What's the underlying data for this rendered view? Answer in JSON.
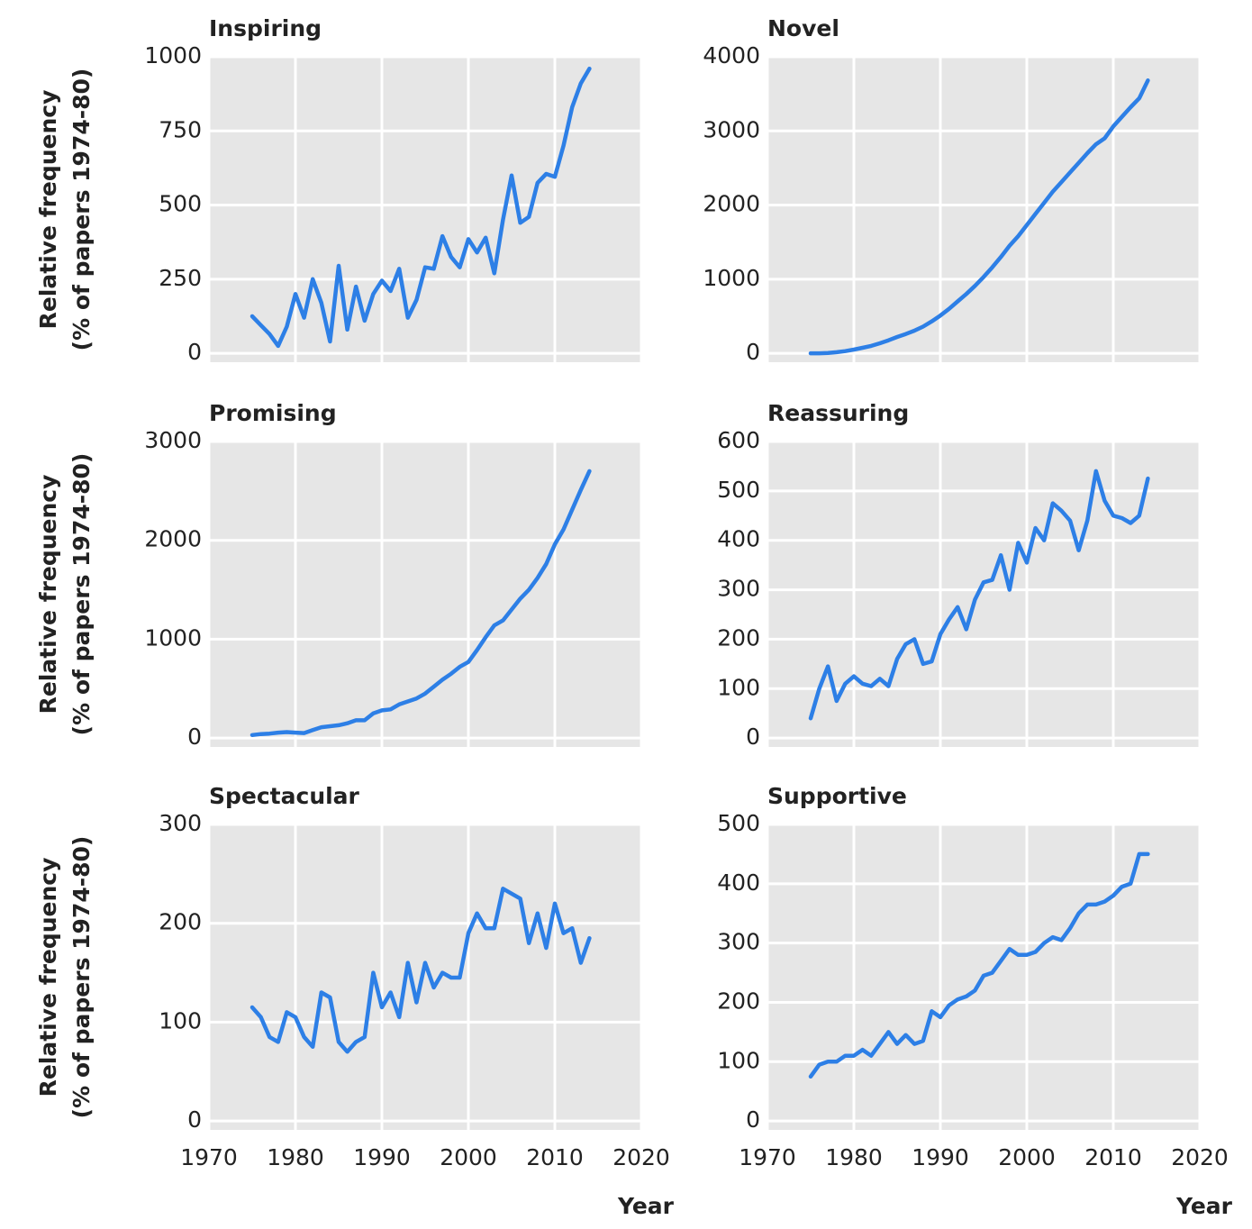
{
  "chart_data": [
    {
      "type": "line",
      "title": "Inspiring",
      "ylabel": [
        "Relative frequency",
        "(% of papers 1974-80)"
      ],
      "x": [
        1975,
        1976,
        1977,
        1978,
        1979,
        1980,
        1981,
        1982,
        1983,
        1984,
        1985,
        1986,
        1987,
        1988,
        1989,
        1990,
        1991,
        1992,
        1993,
        1994,
        1995,
        1996,
        1997,
        1998,
        1999,
        2000,
        2001,
        2002,
        2003,
        2004,
        2005,
        2006,
        2007,
        2008,
        2009,
        2010,
        2011,
        2012,
        2013,
        2014
      ],
      "series": [
        {
          "color": "#2d7fe6",
          "values": [
            125,
            95,
            65,
            25,
            90,
            200,
            120,
            250,
            170,
            40,
            295,
            80,
            225,
            110,
            200,
            245,
            210,
            285,
            120,
            180,
            290,
            285,
            395,
            325,
            290,
            385,
            340,
            390,
            270,
            450,
            600,
            440,
            460,
            575,
            605,
            595,
            700,
            830,
            910,
            960
          ]
        }
      ],
      "xlim": [
        1970,
        2020
      ],
      "xticks": [
        1970,
        1980,
        1990,
        2000,
        2010,
        2020
      ],
      "ylim": [
        -30,
        1000
      ],
      "yticks": [
        0,
        250,
        500,
        750,
        1000
      ],
      "grid": true
    },
    {
      "type": "line",
      "title": "Novel",
      "x": [
        1975,
        1976,
        1977,
        1978,
        1979,
        1980,
        1981,
        1982,
        1983,
        1984,
        1985,
        1986,
        1987,
        1988,
        1989,
        1990,
        1991,
        1992,
        1993,
        1994,
        1995,
        1996,
        1997,
        1998,
        1999,
        2000,
        2001,
        2002,
        2003,
        2004,
        2005,
        2006,
        2007,
        2008,
        2009,
        2010,
        2011,
        2012,
        2013,
        2014
      ],
      "series": [
        {
          "color": "#2d7fe6",
          "values": [
            0,
            0,
            5,
            15,
            30,
            50,
            75,
            100,
            135,
            175,
            220,
            260,
            305,
            360,
            430,
            510,
            600,
            700,
            800,
            910,
            1030,
            1160,
            1300,
            1450,
            1580,
            1730,
            1880,
            2030,
            2180,
            2310,
            2440,
            2570,
            2700,
            2820,
            2900,
            3060,
            3190,
            3320,
            3440,
            3680
          ]
        }
      ],
      "xlim": [
        1970,
        2020
      ],
      "xticks": [
        1970,
        1980,
        1990,
        2000,
        2010,
        2020
      ],
      "ylim": [
        -120,
        4000
      ],
      "yticks": [
        0,
        1000,
        2000,
        3000,
        4000
      ],
      "grid": true
    },
    {
      "type": "line",
      "title": "Promising",
      "ylabel": [
        "Relative frequency",
        "(% of papers 1974-80)"
      ],
      "x": [
        1975,
        1976,
        1977,
        1978,
        1979,
        1980,
        1981,
        1982,
        1983,
        1984,
        1985,
        1986,
        1987,
        1988,
        1989,
        1990,
        1991,
        1992,
        1993,
        1994,
        1995,
        1996,
        1997,
        1998,
        1999,
        2000,
        2001,
        2002,
        2003,
        2004,
        2005,
        2006,
        2007,
        2008,
        2009,
        2010,
        2011,
        2012,
        2013,
        2014
      ],
      "series": [
        {
          "color": "#2d7fe6",
          "values": [
            30,
            40,
            45,
            55,
            60,
            55,
            50,
            80,
            110,
            120,
            130,
            150,
            180,
            180,
            250,
            280,
            290,
            340,
            370,
            400,
            450,
            520,
            590,
            650,
            720,
            770,
            890,
            1020,
            1140,
            1190,
            1300,
            1410,
            1500,
            1620,
            1760,
            1960,
            2110,
            2310,
            2510,
            2700
          ]
        }
      ],
      "xlim": [
        1970,
        2020
      ],
      "xticks": [
        1970,
        1980,
        1990,
        2000,
        2010,
        2020
      ],
      "ylim": [
        -90,
        3000
      ],
      "yticks": [
        0,
        1000,
        2000,
        3000
      ],
      "grid": true
    },
    {
      "type": "line",
      "title": "Reassuring",
      "x": [
        1975,
        1976,
        1977,
        1978,
        1979,
        1980,
        1981,
        1982,
        1983,
        1984,
        1985,
        1986,
        1987,
        1988,
        1989,
        1990,
        1991,
        1992,
        1993,
        1994,
        1995,
        1996,
        1997,
        1998,
        1999,
        2000,
        2001,
        2002,
        2003,
        2004,
        2005,
        2006,
        2007,
        2008,
        2009,
        2010,
        2011,
        2012,
        2013,
        2014
      ],
      "series": [
        {
          "color": "#2d7fe6",
          "values": [
            40,
            100,
            145,
            75,
            110,
            125,
            110,
            105,
            120,
            105,
            160,
            190,
            200,
            150,
            155,
            210,
            240,
            265,
            220,
            280,
            315,
            320,
            370,
            300,
            395,
            355,
            425,
            400,
            475,
            460,
            440,
            380,
            440,
            540,
            480,
            450,
            445,
            435,
            450,
            525
          ]
        }
      ],
      "xlim": [
        1970,
        2020
      ],
      "xticks": [
        1970,
        1980,
        1990,
        2000,
        2010,
        2020
      ],
      "ylim": [
        -18,
        600
      ],
      "yticks": [
        0,
        100,
        200,
        300,
        400,
        500,
        600
      ],
      "grid": true
    },
    {
      "type": "line",
      "title": "Spectacular",
      "ylabel": [
        "Relative frequency",
        "(% of papers 1974-80)"
      ],
      "xlabel": "Year",
      "x": [
        1975,
        1976,
        1977,
        1978,
        1979,
        1980,
        1981,
        1982,
        1983,
        1984,
        1985,
        1986,
        1987,
        1988,
        1989,
        1990,
        1991,
        1992,
        1993,
        1994,
        1995,
        1996,
        1997,
        1998,
        1999,
        2000,
        2001,
        2002,
        2003,
        2004,
        2005,
        2006,
        2007,
        2008,
        2009,
        2010,
        2011,
        2012,
        2013,
        2014
      ],
      "series": [
        {
          "color": "#2d7fe6",
          "values": [
            115,
            105,
            85,
            80,
            110,
            105,
            85,
            75,
            130,
            125,
            80,
            70,
            80,
            85,
            150,
            115,
            130,
            105,
            160,
            120,
            160,
            135,
            150,
            145,
            145,
            190,
            210,
            195,
            195,
            235,
            230,
            225,
            180,
            210,
            175,
            220,
            190,
            195,
            160,
            185
          ]
        }
      ],
      "xlim": [
        1970,
        2020
      ],
      "xticks": [
        1970,
        1980,
        1990,
        2000,
        2010,
        2020
      ],
      "ylim": [
        -9,
        300
      ],
      "yticks": [
        0,
        100,
        200,
        300
      ],
      "grid": true
    },
    {
      "type": "line",
      "title": "Supportive",
      "xlabel": "Year",
      "x": [
        1975,
        1976,
        1977,
        1978,
        1979,
        1980,
        1981,
        1982,
        1983,
        1984,
        1985,
        1986,
        1987,
        1988,
        1989,
        1990,
        1991,
        1992,
        1993,
        1994,
        1995,
        1996,
        1997,
        1998,
        1999,
        2000,
        2001,
        2002,
        2003,
        2004,
        2005,
        2006,
        2007,
        2008,
        2009,
        2010,
        2011,
        2012,
        2013,
        2014
      ],
      "series": [
        {
          "color": "#2d7fe6",
          "values": [
            75,
            95,
            100,
            100,
            110,
            110,
            120,
            110,
            130,
            150,
            130,
            145,
            130,
            135,
            185,
            175,
            195,
            205,
            210,
            220,
            245,
            250,
            270,
            290,
            280,
            280,
            285,
            300,
            310,
            305,
            325,
            350,
            365,
            365,
            370,
            380,
            395,
            400,
            450,
            450
          ]
        }
      ],
      "xlim": [
        1970,
        2020
      ],
      "xticks": [
        1970,
        1980,
        1990,
        2000,
        2010,
        2020
      ],
      "ylim": [
        -15,
        500
      ],
      "yticks": [
        0,
        100,
        200,
        300,
        400,
        500
      ],
      "grid": true
    }
  ]
}
